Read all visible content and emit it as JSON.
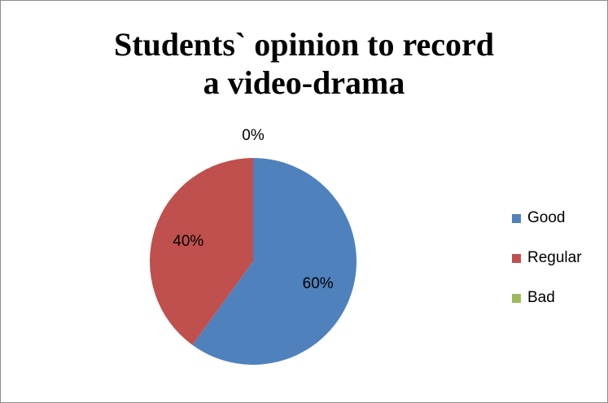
{
  "chart_data": {
    "type": "pie",
    "title_lines": [
      "Students` opinion to record",
      "a video-drama"
    ],
    "categories": [
      "Good",
      "Regular",
      "Bad"
    ],
    "values": [
      60,
      40,
      0
    ],
    "data_labels": [
      "60%",
      "40%",
      "0%"
    ],
    "colors": [
      "#4F81BD",
      "#C0504D",
      "#9BBB59"
    ],
    "legend_position": "right"
  }
}
